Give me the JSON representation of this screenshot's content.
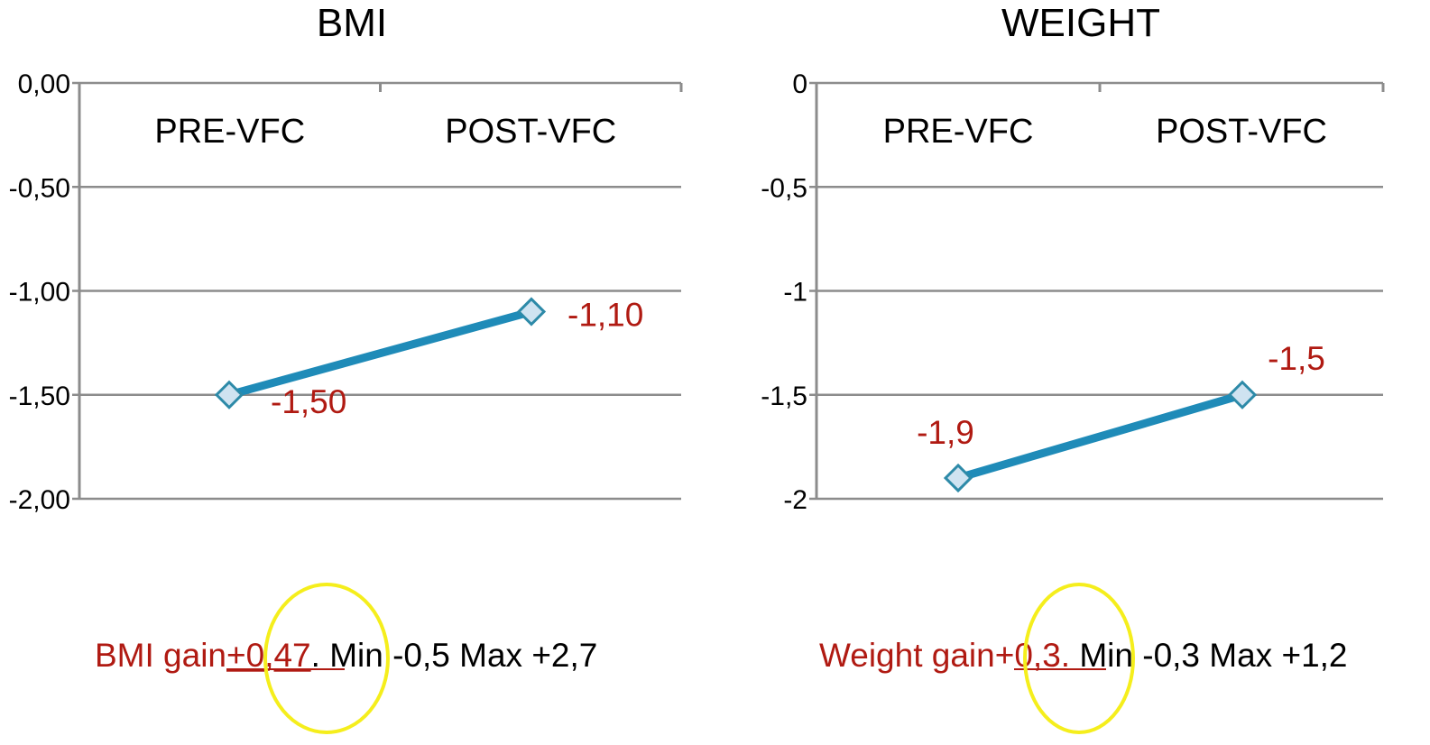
{
  "chart_data": [
    {
      "type": "line",
      "title": "BMI",
      "categories": [
        "PRE-VFC",
        "POST-VFC"
      ],
      "series": [
        {
          "name": "BMI",
          "values": [
            -1.5,
            -1.1
          ],
          "color": "#1f8bb8"
        }
      ],
      "data_labels": [
        "-1,50",
        "-1,10"
      ],
      "yticks": [
        0,
        -0.5,
        -1,
        -1.5,
        -2
      ],
      "ytick_labels": [
        "0,00",
        "-0,50",
        "-1,00",
        "-1,50",
        "-2,00"
      ],
      "ylim": [
        -2,
        0
      ],
      "xlabel": "",
      "ylabel": "",
      "grid": true,
      "category_axis_position": "top",
      "caption": {
        "highlight": "BMI gain",
        "value": "+0,47",
        "rest": ". Min -0,5 Max +2,7"
      }
    },
    {
      "type": "line",
      "title": "WEIGHT",
      "categories": [
        "PRE-VFC",
        "POST-VFC"
      ],
      "series": [
        {
          "name": "Weight",
          "values": [
            -1.9,
            -1.5
          ],
          "color": "#1f8bb8"
        }
      ],
      "data_labels": [
        "-1,9",
        "-1,5"
      ],
      "yticks": [
        0,
        -0.5,
        -1,
        -1.5,
        -2
      ],
      "ytick_labels": [
        "0",
        "-0,5",
        "-1",
        "-1,5",
        "-2"
      ],
      "ylim": [
        -2,
        0
      ],
      "xlabel": "",
      "ylabel": "",
      "grid": true,
      "category_axis_position": "top",
      "caption": {
        "highlight": "Weight gain",
        "value": "+0,3.",
        "rest": " Min -0,3 Max +1,2"
      }
    }
  ],
  "colors": {
    "line": "#1f8bb8",
    "data_label": "#b01a12",
    "caption_highlight": "#b01a12",
    "annotation_ellipse": "#f5ee1c"
  }
}
